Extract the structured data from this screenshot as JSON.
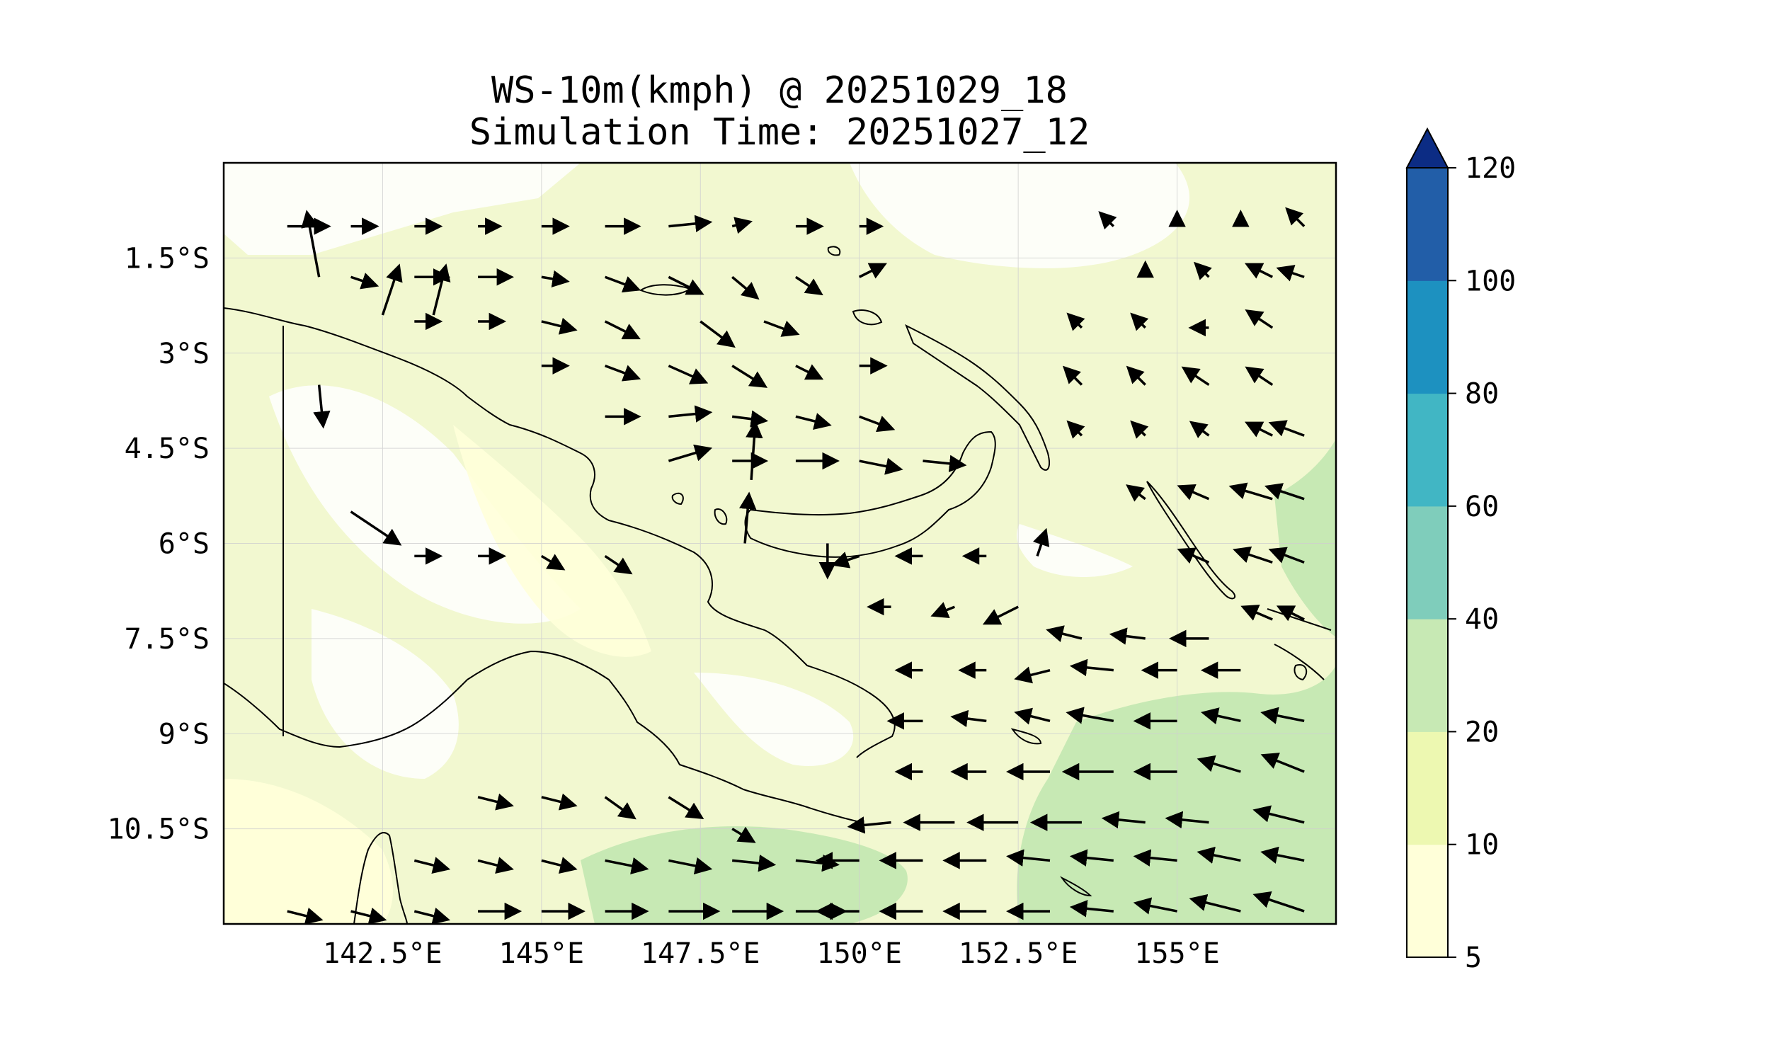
{
  "title": {
    "line1": "WS-10m(kmph) @ 20251029_18",
    "line2": "Simulation Time: 20251027_12"
  },
  "map": {
    "lon_range": [
      140.0,
      157.5
    ],
    "lat_range": [
      -12.0,
      0.0
    ],
    "lon_ticks": [
      {
        "value": 142.5,
        "label": "142.5°E"
      },
      {
        "value": 145.0,
        "label": "145°E"
      },
      {
        "value": 147.5,
        "label": "147.5°E"
      },
      {
        "value": 150.0,
        "label": "150°E"
      },
      {
        "value": 152.5,
        "label": "152.5°E"
      },
      {
        "value": 155.0,
        "label": "155°E"
      }
    ],
    "lat_ticks": [
      {
        "value": -1.5,
        "label": "1.5°S"
      },
      {
        "value": -3.0,
        "label": "3°S"
      },
      {
        "value": -4.5,
        "label": "4.5°S"
      },
      {
        "value": -6.0,
        "label": "6°S"
      },
      {
        "value": -7.5,
        "label": "7.5°S"
      },
      {
        "value": -9.0,
        "label": "9°S"
      },
      {
        "value": -10.5,
        "label": "10.5°S"
      }
    ],
    "gridlines": true,
    "background_color": "#f2f8d0"
  },
  "colorbar": {
    "label_values": [
      "5",
      "10",
      "20",
      "40",
      "60",
      "80",
      "100",
      "120"
    ],
    "colors": [
      "#ffffd9",
      "#edf8b1",
      "#c7e9b4",
      "#7fcdbb",
      "#41b6c4",
      "#1d91c0",
      "#225ea8",
      "#0c2c84"
    ],
    "extend": "max"
  },
  "wind_field": {
    "description": "10m wind vectors (quiver)",
    "arrows": [
      [
        141.5,
        -1.8,
        -0.3,
        1.6
      ],
      [
        142.5,
        -2.4,
        0.4,
        1.2
      ],
      [
        143.3,
        -2.4,
        0.3,
        1.2
      ],
      [
        141.5,
        -3.5,
        0.1,
        -1.0
      ],
      [
        141.0,
        -1.0,
        1.0,
        0.0
      ],
      [
        142.0,
        -1.0,
        0.6,
        0.0
      ],
      [
        143.0,
        -1.0,
        0.6,
        0.0
      ],
      [
        144.0,
        -1.0,
        0.5,
        0.0
      ],
      [
        145.0,
        -1.0,
        0.6,
        0.0
      ],
      [
        146.0,
        -1.0,
        0.8,
        0.0
      ],
      [
        147.0,
        -1.0,
        1.0,
        0.1
      ],
      [
        148.0,
        -1.0,
        0.4,
        0.1
      ],
      [
        149.0,
        -1.0,
        0.6,
        0.0
      ],
      [
        150.0,
        -1.0,
        0.5,
        0.0
      ],
      [
        142.0,
        -1.8,
        0.6,
        -0.2
      ],
      [
        143.0,
        -1.8,
        0.8,
        0.0
      ],
      [
        144.0,
        -1.8,
        0.8,
        0.0
      ],
      [
        145.0,
        -1.8,
        0.6,
        -0.1
      ],
      [
        146.0,
        -1.8,
        0.8,
        -0.3
      ],
      [
        147.0,
        -1.8,
        0.8,
        -0.4
      ],
      [
        148.0,
        -1.8,
        0.6,
        -0.5
      ],
      [
        149.0,
        -1.8,
        0.6,
        -0.4
      ],
      [
        150.0,
        -1.8,
        0.6,
        0.3
      ],
      [
        143.0,
        -2.5,
        0.6,
        0.0
      ],
      [
        144.0,
        -2.5,
        0.6,
        0.0
      ],
      [
        145.0,
        -2.5,
        0.8,
        -0.2
      ],
      [
        146.0,
        -2.5,
        0.8,
        -0.4
      ],
      [
        147.5,
        -2.5,
        0.8,
        -0.6
      ],
      [
        148.5,
        -2.5,
        0.8,
        -0.3
      ],
      [
        145.0,
        -3.2,
        0.6,
        0.0
      ],
      [
        146.0,
        -3.2,
        0.8,
        -0.3
      ],
      [
        147.0,
        -3.2,
        0.9,
        -0.4
      ],
      [
        148.0,
        -3.2,
        0.8,
        -0.5
      ],
      [
        149.0,
        -3.2,
        0.6,
        -0.3
      ],
      [
        150.0,
        -3.2,
        0.6,
        0.0
      ],
      [
        146.0,
        -4.0,
        0.8,
        0.0
      ],
      [
        147.0,
        -4.0,
        1.0,
        0.1
      ],
      [
        148.0,
        -4.0,
        0.8,
        -0.1
      ],
      [
        149.0,
        -4.0,
        0.8,
        -0.2
      ],
      [
        150.0,
        -4.0,
        0.8,
        -0.3
      ],
      [
        147.0,
        -4.7,
        1.0,
        0.3
      ],
      [
        148.0,
        -4.7,
        0.8,
        0.0
      ],
      [
        149.0,
        -4.7,
        1.0,
        0.0
      ],
      [
        150.0,
        -4.7,
        1.0,
        -0.2
      ],
      [
        151.0,
        -4.7,
        1.0,
        -0.1
      ],
      [
        148.3,
        -5.0,
        0.1,
        1.4
      ],
      [
        148.2,
        -6.0,
        0.1,
        1.2
      ],
      [
        149.5,
        -6.0,
        0.0,
        -0.8
      ],
      [
        142.0,
        -5.5,
        1.2,
        -0.8
      ],
      [
        143.0,
        -6.2,
        0.6,
        0.0
      ],
      [
        144.0,
        -6.2,
        0.6,
        0.0
      ],
      [
        145.0,
        -6.2,
        0.5,
        -0.3
      ],
      [
        146.0,
        -6.2,
        0.6,
        -0.4
      ],
      [
        150.0,
        -6.2,
        -0.6,
        -0.2
      ],
      [
        151.0,
        -6.2,
        -0.6,
        0.0
      ],
      [
        152.0,
        -6.2,
        -0.5,
        0.0
      ],
      [
        152.8,
        -6.2,
        0.2,
        0.6
      ],
      [
        150.5,
        -7.0,
        -0.5,
        0.0
      ],
      [
        151.5,
        -7.0,
        -0.5,
        -0.2
      ],
      [
        152.5,
        -7.0,
        -0.8,
        -0.4
      ],
      [
        153.5,
        -7.5,
        -0.8,
        0.2
      ],
      [
        154.5,
        -7.5,
        -0.8,
        0.1
      ],
      [
        155.5,
        -7.5,
        -0.9,
        0.0
      ],
      [
        151.0,
        -8.0,
        -0.6,
        0.0
      ],
      [
        152.0,
        -8.0,
        -0.6,
        0.0
      ],
      [
        153.0,
        -8.0,
        -0.8,
        -0.2
      ],
      [
        154.0,
        -8.0,
        -1.0,
        0.1
      ],
      [
        155.0,
        -8.0,
        -0.8,
        0.0
      ],
      [
        156.0,
        -8.0,
        -0.9,
        0.0
      ],
      [
        151.0,
        -8.8,
        -0.8,
        0.0
      ],
      [
        152.0,
        -8.8,
        -0.8,
        0.1
      ],
      [
        153.0,
        -8.8,
        -0.8,
        0.2
      ],
      [
        154.0,
        -8.8,
        -1.1,
        0.2
      ],
      [
        155.0,
        -8.8,
        -1.0,
        0.0
      ],
      [
        156.0,
        -8.8,
        -0.9,
        0.2
      ],
      [
        157.0,
        -8.8,
        -1.0,
        0.2
      ],
      [
        151.0,
        -9.6,
        -0.6,
        0.0
      ],
      [
        152.0,
        -9.6,
        -0.8,
        0.0
      ],
      [
        153.0,
        -9.6,
        -1.0,
        0.0
      ],
      [
        154.0,
        -9.6,
        -1.2,
        0.0
      ],
      [
        155.0,
        -9.6,
        -1.0,
        0.0
      ],
      [
        156.0,
        -9.6,
        -1.0,
        0.3
      ],
      [
        157.0,
        -9.6,
        -1.0,
        0.4
      ],
      [
        150.5,
        -10.4,
        -1.0,
        -0.1
      ],
      [
        151.5,
        -10.4,
        -1.2,
        0.0
      ],
      [
        152.5,
        -10.4,
        -1.2,
        0.0
      ],
      [
        153.5,
        -10.4,
        -1.2,
        0.0
      ],
      [
        154.5,
        -10.4,
        -1.0,
        0.1
      ],
      [
        155.5,
        -10.4,
        -1.0,
        0.1
      ],
      [
        157.0,
        -10.4,
        -1.2,
        0.3
      ],
      [
        144.0,
        -10.0,
        0.8,
        -0.2
      ],
      [
        145.0,
        -10.0,
        0.8,
        -0.2
      ],
      [
        146.0,
        -10.0,
        0.7,
        -0.5
      ],
      [
        147.0,
        -10.0,
        0.8,
        -0.5
      ],
      [
        148.0,
        -10.5,
        0.5,
        -0.3
      ],
      [
        143.0,
        -11.0,
        0.8,
        -0.2
      ],
      [
        144.0,
        -11.0,
        0.8,
        -0.2
      ],
      [
        145.0,
        -11.0,
        0.8,
        -0.2
      ],
      [
        146.0,
        -11.0,
        1.0,
        -0.2
      ],
      [
        147.0,
        -11.0,
        1.0,
        -0.2
      ],
      [
        148.0,
        -11.0,
        1.0,
        -0.1
      ],
      [
        149.0,
        -11.0,
        1.0,
        -0.1
      ],
      [
        150.0,
        -11.0,
        -1.0,
        0.0
      ],
      [
        151.0,
        -11.0,
        -1.0,
        0.0
      ],
      [
        152.0,
        -11.0,
        -1.0,
        0.0
      ],
      [
        153.0,
        -11.0,
        -1.0,
        0.1
      ],
      [
        154.0,
        -11.0,
        -1.0,
        0.1
      ],
      [
        155.0,
        -11.0,
        -1.0,
        0.1
      ],
      [
        156.0,
        -11.0,
        -1.0,
        0.2
      ],
      [
        157.0,
        -11.0,
        -1.0,
        0.2
      ],
      [
        141.0,
        -11.8,
        0.8,
        -0.2
      ],
      [
        142.0,
        -11.8,
        0.8,
        -0.2
      ],
      [
        143.0,
        -11.8,
        0.8,
        -0.2
      ],
      [
        144.0,
        -11.8,
        1.0,
        0.0
      ],
      [
        145.0,
        -11.8,
        1.0,
        0.0
      ],
      [
        146.0,
        -11.8,
        1.0,
        0.0
      ],
      [
        147.0,
        -11.8,
        1.2,
        0.0
      ],
      [
        148.0,
        -11.8,
        1.2,
        0.0
      ],
      [
        149.0,
        -11.8,
        1.2,
        0.0
      ],
      [
        150.0,
        -11.8,
        -1.0,
        0.0
      ],
      [
        151.0,
        -11.8,
        -1.0,
        0.0
      ],
      [
        152.0,
        -11.8,
        -1.0,
        0.0
      ],
      [
        153.0,
        -11.8,
        -1.0,
        0.0
      ],
      [
        154.0,
        -11.8,
        -1.0,
        0.1
      ],
      [
        155.0,
        -11.8,
        -1.0,
        0.2
      ],
      [
        156.0,
        -11.8,
        -1.2,
        0.3
      ],
      [
        157.0,
        -11.8,
        -1.2,
        0.4
      ],
      [
        154.0,
        -1.0,
        -0.3,
        0.3
      ],
      [
        155.0,
        -1.0,
        0.0,
        0.3
      ],
      [
        156.0,
        -1.0,
        0.0,
        0.3
      ],
      [
        157.0,
        -1.0,
        -0.4,
        0.4
      ],
      [
        154.5,
        -1.8,
        0.0,
        0.3
      ],
      [
        155.5,
        -1.8,
        -0.3,
        0.3
      ],
      [
        156.5,
        -1.8,
        -0.6,
        0.3
      ],
      [
        157.0,
        -1.8,
        -0.6,
        0.2
      ],
      [
        153.5,
        -2.6,
        -0.3,
        0.3
      ],
      [
        154.5,
        -2.6,
        -0.3,
        0.3
      ],
      [
        155.5,
        -2.6,
        -0.4,
        0.0
      ],
      [
        156.5,
        -2.6,
        -0.6,
        0.4
      ],
      [
        153.5,
        -3.5,
        -0.4,
        0.4
      ],
      [
        154.5,
        -3.5,
        -0.4,
        0.4
      ],
      [
        155.5,
        -3.5,
        -0.6,
        0.4
      ],
      [
        156.5,
        -3.5,
        -0.6,
        0.4
      ],
      [
        153.5,
        -4.3,
        -0.3,
        0.3
      ],
      [
        154.5,
        -4.3,
        -0.3,
        0.3
      ],
      [
        155.5,
        -4.3,
        -0.4,
        0.3
      ],
      [
        156.5,
        -4.3,
        -0.6,
        0.3
      ],
      [
        157.0,
        -4.3,
        -0.8,
        0.3
      ],
      [
        154.5,
        -5.3,
        -0.4,
        0.3
      ],
      [
        155.5,
        -5.3,
        -0.7,
        0.3
      ],
      [
        156.5,
        -5.3,
        -1.0,
        0.3
      ],
      [
        157.0,
        -5.3,
        -0.9,
        0.3
      ],
      [
        155.5,
        -6.3,
        -0.7,
        0.3
      ],
      [
        156.5,
        -6.3,
        -0.9,
        0.3
      ],
      [
        157.0,
        -6.3,
        -0.8,
        0.3
      ],
      [
        156.5,
        -7.2,
        -0.7,
        0.3
      ],
      [
        157.0,
        -7.2,
        -0.6,
        0.3
      ]
    ]
  }
}
